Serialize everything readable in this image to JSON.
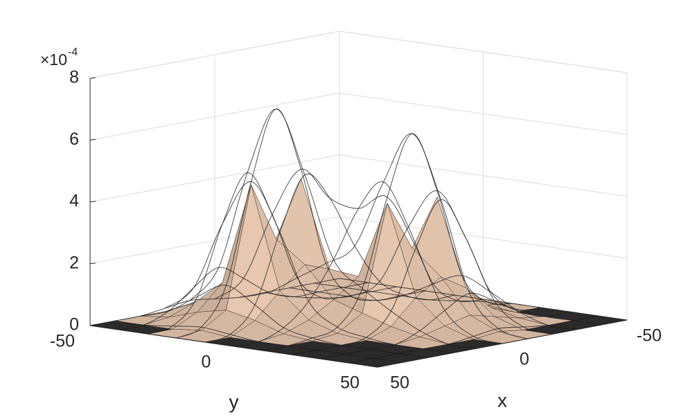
{
  "chart_data": {
    "type": "surface3d",
    "xlabel": "x",
    "ylabel": "y",
    "zaxis_multiplier": {
      "base": "×10",
      "exponent": "-4"
    },
    "x": [
      -50,
      -40,
      -30,
      -20,
      -10,
      0,
      10,
      20,
      30,
      40,
      50
    ],
    "y": [
      -50,
      -40,
      -30,
      -20,
      -10,
      0,
      10,
      20,
      30,
      40,
      50
    ],
    "xlim": [
      -50,
      50
    ],
    "ylim": [
      -50,
      50
    ],
    "zlim": [
      0,
      8
    ],
    "xticks": [
      -50,
      0,
      50
    ],
    "yticks": [
      -50,
      0,
      50
    ],
    "zticks": [
      0,
      2,
      4,
      6,
      8
    ],
    "grid": true,
    "surfaces": [
      {
        "style": "mesh",
        "color": "#1a1a1a",
        "z": [
          [
            0,
            0,
            0,
            0,
            0,
            0.1,
            0.2,
            0.1,
            0,
            0,
            0
          ],
          [
            0,
            0,
            0,
            0,
            0.3,
            0.9,
            1.4,
            0.9,
            0.3,
            0,
            0
          ],
          [
            0,
            0,
            0,
            0.1,
            0.9,
            3.1,
            4.6,
            3.1,
            0.9,
            0.1,
            0
          ],
          [
            0,
            0,
            0,
            0.3,
            1.5,
            4.7,
            6.8,
            4.6,
            1.4,
            0.2,
            0
          ],
          [
            0,
            0,
            0.3,
            0.9,
            2.2,
            3.9,
            4.8,
            3.1,
            0.9,
            0.1,
            0
          ],
          [
            0,
            0.1,
            0.8,
            2.8,
            4.4,
            3.7,
            2.2,
            1.0,
            0.3,
            0,
            0
          ],
          [
            0,
            0.2,
            1.2,
            4.1,
            6.1,
            4.2,
            1.4,
            0.3,
            0.1,
            0,
            0
          ],
          [
            0,
            0.1,
            0.8,
            2.7,
            4.1,
            2.7,
            0.8,
            0.1,
            0,
            0,
            0
          ],
          [
            0,
            0,
            0.3,
            0.8,
            1.2,
            0.8,
            0.3,
            0,
            0,
            0,
            0
          ],
          [
            0,
            0,
            0,
            0.1,
            0.2,
            0.1,
            0,
            0,
            0,
            0,
            0
          ],
          [
            0,
            0,
            0,
            0,
            0,
            0,
            0,
            0,
            0,
            0,
            0
          ]
        ]
      },
      {
        "style": "faceted",
        "color": "#e8c8b0",
        "z": [
          [
            0,
            0,
            0,
            0,
            0,
            0,
            0.1,
            0,
            0,
            0,
            0
          ],
          [
            0,
            0,
            0,
            0,
            0.1,
            0.4,
            0.6,
            0.4,
            0.1,
            0,
            0
          ],
          [
            0,
            0,
            0,
            0,
            0.4,
            1.2,
            1.8,
            1.2,
            0.4,
            0,
            0
          ],
          [
            0,
            0,
            0,
            0.1,
            0.6,
            4.4,
            2.6,
            4.5,
            0.6,
            0.1,
            0
          ],
          [
            0,
            0,
            0.1,
            0.4,
            0.9,
            1.6,
            1.9,
            1.2,
            0.4,
            0,
            0
          ],
          [
            0,
            0,
            0.3,
            1.1,
            1.8,
            1.5,
            0.9,
            0.4,
            0.1,
            0,
            0
          ],
          [
            0,
            0.1,
            0.5,
            3.9,
            2.4,
            4.0,
            0.6,
            0.1,
            0,
            0,
            0
          ],
          [
            0,
            0,
            0.3,
            1.1,
            1.6,
            1.1,
            0.3,
            0,
            0,
            0,
            0
          ],
          [
            0,
            0,
            0.1,
            0.3,
            0.5,
            0.3,
            0.1,
            0,
            0,
            0,
            0
          ],
          [
            0,
            0,
            0,
            0,
            0.1,
            0,
            0,
            0,
            0,
            0,
            0
          ],
          [
            0,
            0,
            0,
            0,
            0,
            0,
            0,
            0,
            0,
            0,
            0
          ]
        ]
      }
    ]
  }
}
